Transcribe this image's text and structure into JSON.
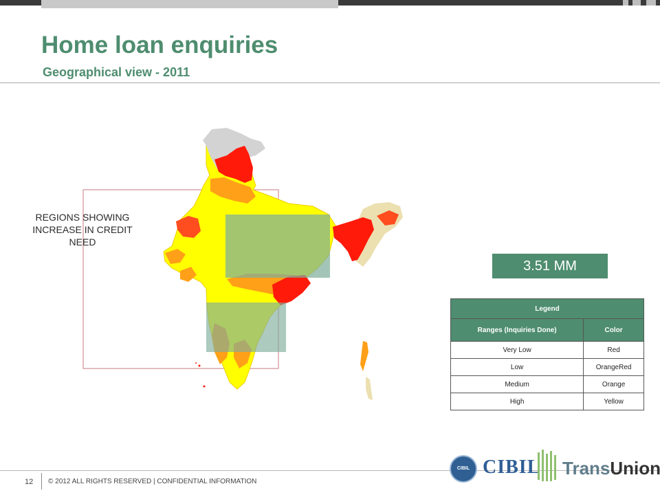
{
  "slide": {
    "title": "Home loan enquiries",
    "subtitle": "Geographical view - 2011",
    "region_label": "REGIONS SHOWING INCREASE IN CREDIT NEED",
    "stat_value": "3.51 MM",
    "legend": {
      "title": "Legend",
      "columns": [
        "Ranges (Inquiries Done)",
        "Color"
      ],
      "rows": [
        {
          "range": "Very Low",
          "color": "Red"
        },
        {
          "range": "Low",
          "color": "OrangeRed"
        },
        {
          "range": "Medium",
          "color": "Orange"
        },
        {
          "range": "High",
          "color": "Yellow"
        }
      ]
    },
    "footer": {
      "page_number": "12",
      "text": "© 2012 ALL RIGHTS RESERVED | CONFIDENTIAL INFORMATION"
    },
    "logos": {
      "seal_text": "CIBIL",
      "cibil": "CIBIL",
      "transunion_a": "Trans",
      "transunion_b": "Union",
      "transunion_reg": "®"
    }
  },
  "map_colors": {
    "very_low": "#ff1a0a",
    "low": "#ff4d1f",
    "medium": "#ffa018",
    "high": "#ffff00",
    "no_data": "#d3d3d3",
    "light": "#ecdfb0",
    "highlight_fill": "#7fae9b"
  }
}
